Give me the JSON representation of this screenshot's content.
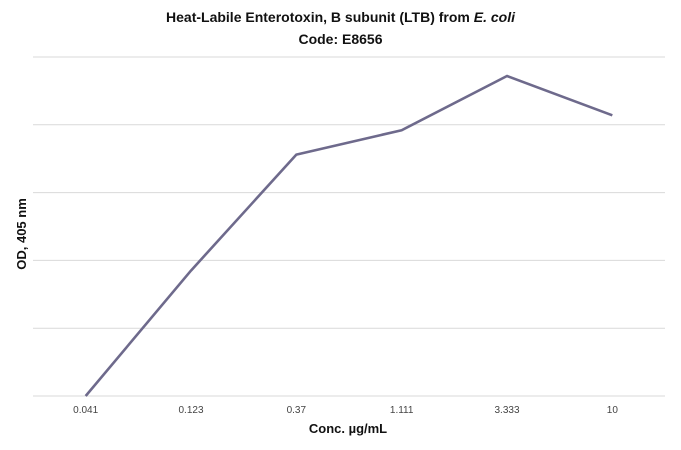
{
  "chart_data": {
    "type": "line",
    "title_prefix": "Heat-Labile Enterotoxin, B subunit (LTB) from ",
    "title_italic": "E. coli",
    "subtitle": "Code: E8656",
    "xlabel": "Conc. µg/mL",
    "ylabel": "OD, 405 nm",
    "categories": [
      "0.041",
      "0.123",
      "0.37",
      "1.111",
      "3.333",
      "10"
    ],
    "series": [
      {
        "values": [
          0.0,
          1.85,
          3.56,
          3.92,
          4.72,
          4.14
        ]
      }
    ],
    "ylim": [
      0,
      5
    ],
    "y_gridlines": [
      0,
      1,
      2,
      3,
      4,
      5
    ],
    "y_tick_labels_shown": false,
    "grid": true,
    "legend": "none",
    "line_color": "#6e6a8c",
    "grid_color": "#d9d9d9"
  }
}
